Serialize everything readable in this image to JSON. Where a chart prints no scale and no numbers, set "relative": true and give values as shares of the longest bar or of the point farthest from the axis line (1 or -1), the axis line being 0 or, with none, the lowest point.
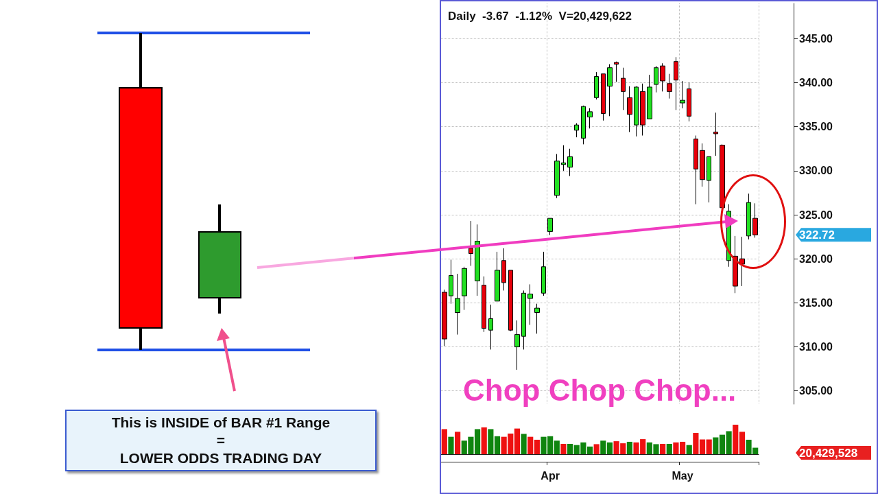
{
  "chart_data": [
    {
      "type": "candlestick",
      "title": "Daily  -3.67  -1.12%  V=20,429,622",
      "categories": [
        null,
        null,
        null,
        null,
        null,
        null,
        null,
        null,
        null,
        null,
        null,
        null,
        null,
        null,
        null,
        null,
        "Apr",
        null,
        null,
        null,
        null,
        null,
        null,
        null,
        null,
        null,
        null,
        null,
        null,
        null,
        null,
        null,
        null,
        null,
        null,
        null,
        "May",
        null,
        null,
        null,
        null,
        null,
        null,
        null,
        null,
        null,
        null,
        null
      ],
      "ohlc": [
        [
          316.2,
          316.5,
          310.1,
          310.9
        ],
        [
          315.8,
          319.9,
          314.9,
          318.1
        ],
        [
          313.9,
          318.3,
          311.4,
          315.5
        ],
        [
          315.8,
          319.1,
          314.2,
          318.9
        ],
        [
          321.2,
          324.3,
          319.2,
          320.6
        ],
        [
          317.5,
          323.9,
          315.8,
          322.0
        ],
        [
          317.0,
          318.0,
          311.7,
          312.1
        ],
        [
          311.9,
          314.8,
          309.7,
          313.2
        ],
        [
          315.2,
          320.8,
          315.2,
          318.7
        ],
        [
          319.8,
          321.2,
          316.4,
          317.3
        ],
        [
          318.7,
          318.7,
          311.8,
          311.9
        ],
        [
          310.0,
          313.0,
          307.4,
          311.4
        ],
        [
          311.2,
          316.4,
          309.7,
          316.1
        ],
        [
          315.5,
          317.1,
          312.5,
          316.0
        ],
        [
          313.9,
          314.9,
          311.5,
          314.4
        ],
        [
          316.1,
          320.8,
          315.8,
          319.1
        ],
        [
          323.1,
          324.6,
          322.7,
          324.6
        ],
        [
          327.2,
          331.9,
          326.9,
          331.1
        ],
        [
          330.7,
          332.9,
          330.0,
          330.9
        ],
        [
          330.4,
          332.5,
          329.4,
          331.6
        ],
        [
          334.6,
          335.4,
          333.8,
          335.2
        ],
        [
          333.7,
          337.4,
          333.0,
          337.3
        ],
        [
          336.1,
          337.1,
          334.8,
          336.7
        ],
        [
          338.3,
          341.2,
          338.1,
          340.7
        ],
        [
          341.0,
          341.0,
          335.7,
          336.5
        ],
        [
          339.6,
          342.1,
          336.2,
          341.7
        ],
        [
          342.3,
          342.4,
          340.1,
          342.1
        ],
        [
          340.5,
          341.7,
          336.9,
          339.0
        ],
        [
          338.3,
          339.6,
          334.4,
          336.4
        ],
        [
          335.2,
          339.6,
          333.9,
          339.5
        ],
        [
          339.0,
          339.9,
          334.0,
          335.2
        ],
        [
          335.9,
          340.9,
          335.9,
          339.5
        ],
        [
          339.8,
          341.9,
          338.9,
          341.7
        ],
        [
          341.9,
          342.2,
          339.0,
          340.2
        ],
        [
          339.9,
          341.0,
          338.2,
          339.0
        ],
        [
          342.4,
          342.9,
          336.9,
          340.3
        ],
        [
          337.7,
          340.2,
          337.1,
          338.0
        ],
        [
          339.3,
          340.0,
          335.6,
          336.2
        ],
        [
          333.6,
          334.0,
          326.2,
          330.2
        ],
        [
          332.3,
          333.1,
          328.2,
          329.0
        ],
        [
          328.9,
          331.6,
          326.4,
          331.6
        ],
        [
          334.4,
          336.6,
          331.7,
          334.2
        ],
        [
          332.9,
          333.0,
          325.7,
          325.8
        ],
        [
          319.8,
          326.2,
          319.1,
          325.4
        ],
        [
          320.3,
          322.6,
          316.1,
          316.9
        ],
        [
          320.0,
          322.5,
          316.9,
          319.4
        ],
        [
          322.6,
          327.4,
          322.2,
          326.4
        ],
        [
          324.6,
          326.3,
          322.4,
          322.72
        ]
      ],
      "colors": [
        "#e8000b",
        "#22e022",
        "#22e022",
        "#22e022",
        "#e8000b",
        "#22e022",
        "#e8000b",
        "#22e022",
        "#22e022",
        "#e8000b",
        "#e8000b",
        "#22e022",
        "#22e022",
        "#22e022",
        "#22e022",
        "#22e022",
        "#22e022",
        "#22e022",
        "#22e022",
        "#22e022",
        "#22e022",
        "#22e022",
        "#22e022",
        "#22e022",
        "#e8000b",
        "#22e022",
        "#e8000b",
        "#e8000b",
        "#e8000b",
        "#22e022",
        "#e8000b",
        "#22e022",
        "#22e022",
        "#e8000b",
        "#e8000b",
        "#e8000b",
        "#22e022",
        "#e8000b",
        "#e8000b",
        "#e8000b",
        "#22e022",
        "#e8000b",
        "#e8000b",
        "#22e022",
        "#e8000b",
        "#e8000b",
        "#22e022",
        "#e8000b"
      ],
      "ylim": [
        303.5,
        349
      ],
      "yticks": [
        {
          "value": 305,
          "label": "305.00"
        },
        {
          "value": 310,
          "label": "310.00"
        },
        {
          "value": 315,
          "label": "315.00"
        },
        {
          "value": 320,
          "label": "320.00"
        },
        {
          "value": 325,
          "label": "325.00"
        },
        {
          "value": 330,
          "label": "330.00"
        },
        {
          "value": 335,
          "label": "335.00"
        },
        {
          "value": 340,
          "label": "340.00"
        },
        {
          "value": 345,
          "label": "345.00"
        }
      ],
      "grid": true,
      "annotations": [
        "322.72",
        "Chop Chop Chop...",
        "This is INSIDE of BAR #1 Range",
        "=",
        "LOWER ODDS TRADING DAY"
      ]
    },
    {
      "type": "bar",
      "relative": true,
      "categories": [
        null,
        null,
        null,
        null,
        null,
        null,
        null,
        null,
        null,
        null,
        null,
        null,
        null,
        null,
        null,
        null,
        null,
        null,
        null,
        null,
        null,
        null,
        null,
        null,
        null,
        null,
        null,
        null,
        null,
        null,
        null,
        null,
        null,
        null,
        null,
        null,
        null,
        null,
        null,
        null,
        null,
        null,
        null,
        null,
        null,
        null,
        null,
        null
      ],
      "values": [
        0.85,
        0.59,
        0.76,
        0.46,
        0.59,
        0.85,
        0.91,
        0.85,
        0.61,
        0.59,
        0.7,
        0.87,
        0.69,
        0.59,
        0.49,
        0.59,
        0.61,
        0.46,
        0.35,
        0.35,
        0.31,
        0.4,
        0.26,
        0.34,
        0.46,
        0.4,
        0.44,
        0.37,
        0.42,
        0.4,
        0.51,
        0.4,
        0.34,
        0.35,
        0.35,
        0.4,
        0.42,
        0.31,
        0.72,
        0.5,
        0.5,
        0.57,
        0.66,
        0.78,
        1,
        0.76,
        0.49,
        0.22
      ],
      "colors": [
        "#ee1111",
        "#0f850f",
        "#ee1111",
        "#0f850f",
        "#0f850f",
        "#0f850f",
        "#ee1111",
        "#0f850f",
        "#0f850f",
        "#ee1111",
        "#ee1111",
        "#ee1111",
        "#0f850f",
        "#ee1111",
        "#ee1111",
        "#0f850f",
        "#0f850f",
        "#0f850f",
        "#ee1111",
        "#0f850f",
        "#0f850f",
        "#0f850f",
        "#0f850f",
        "#ee1111",
        "#0f850f",
        "#0f850f",
        "#ee1111",
        "#ee1111",
        "#0f850f",
        "#ee1111",
        "#ee1111",
        "#0f850f",
        "#0f850f",
        "#ee1111",
        "#0f850f",
        "#ee1111",
        "#ee1111",
        "#0f850f",
        "#ee1111",
        "#ee1111",
        "#ee1111",
        "#0f850f",
        "#0f850f",
        "#0f850f",
        "#ee1111",
        "#ee1111",
        "#0f850f",
        "#0f850f"
      ],
      "annotations": [
        "20,429,528"
      ]
    }
  ]
}
